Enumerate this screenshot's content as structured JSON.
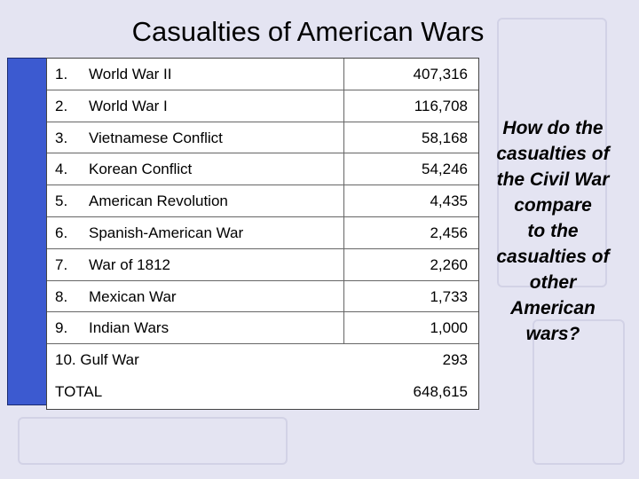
{
  "title": "Casualties of American Wars",
  "table": {
    "rows": [
      [
        "1.",
        "World War II",
        "407,316"
      ],
      [
        "2.",
        "World War I",
        "116,708"
      ],
      [
        "3.",
        "Vietnamese Conflict",
        "58,168"
      ],
      [
        "4.",
        "Korean Conflict",
        "54,246"
      ],
      [
        "5.",
        "American Revolution",
        "4,435"
      ],
      [
        "6.",
        "Spanish-American War",
        "2,456"
      ],
      [
        "7.",
        "War of 1812",
        "2,260"
      ],
      [
        "8.",
        "Mexican War",
        "1,733"
      ],
      [
        "9.",
        "Indian Wars",
        "1,000"
      ],
      [
        "10.  Gulf War",
        "293"
      ],
      [
        "TOTAL",
        "648,615"
      ]
    ]
  },
  "question": {
    "lines": [
      "How do the",
      "casualties of",
      "the Civil War",
      "compare",
      "to the",
      "casualties of",
      "other",
      "American",
      "wars?"
    ]
  }
}
